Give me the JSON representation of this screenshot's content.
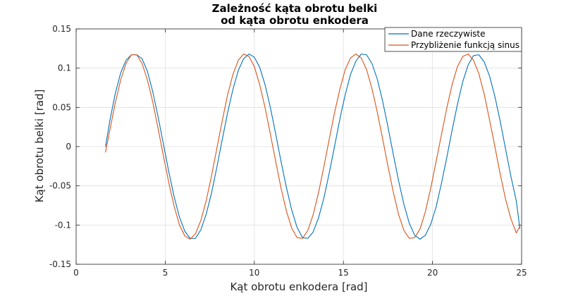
{
  "chart_data": {
    "type": "line",
    "title": [
      "Zależność kąta obrotu belki",
      "od kąta obrotu enkodera"
    ],
    "xlabel": "Kąt obrotu enkodera [rad]",
    "ylabel": "Kąt obrotu belki [rad]",
    "xlim": [
      0,
      25
    ],
    "ylim": [
      -0.15,
      0.15
    ],
    "xticks": [
      0,
      5,
      10,
      15,
      20,
      25
    ],
    "xtick_labels": [
      "0",
      "5",
      "10",
      "15",
      "20",
      "25"
    ],
    "yticks": [
      -0.15,
      -0.1,
      -0.05,
      0,
      0.05,
      0.1,
      0.15
    ],
    "ytick_labels": [
      "-0.15",
      "-0.1",
      "-0.05",
      "0",
      "0.05",
      "0.1",
      "0.15"
    ],
    "grid": true,
    "legend_position": "top-right",
    "series": [
      {
        "name": "Dane rzeczywiste",
        "color": "#0072BD",
        "x": [
          1.65,
          1.9,
          2.2,
          2.5,
          2.8,
          3.1,
          3.4,
          3.7,
          4.0,
          4.3,
          4.6,
          4.9,
          5.2,
          5.5,
          5.8,
          6.1,
          6.4,
          6.7,
          7.0,
          7.3,
          7.6,
          7.9,
          8.2,
          8.5,
          8.8,
          9.1,
          9.4,
          9.7,
          10.0,
          10.3,
          10.6,
          10.9,
          11.2,
          11.5,
          11.8,
          12.1,
          12.4,
          12.7,
          13.0,
          13.3,
          13.6,
          13.9,
          14.2,
          14.5,
          14.8,
          15.1,
          15.4,
          15.7,
          16.0,
          16.3,
          16.6,
          16.9,
          17.2,
          17.5,
          17.8,
          18.1,
          18.4,
          18.7,
          19.0,
          19.3,
          19.6,
          19.9,
          20.2,
          20.5,
          20.8,
          21.1,
          21.4,
          21.7,
          22.0,
          22.3,
          22.6,
          22.9,
          23.2,
          23.5,
          23.8,
          24.1,
          24.4,
          24.7,
          24.9
        ],
        "y": [
          0.0,
          0.034,
          0.068,
          0.094,
          0.11,
          0.117,
          0.117,
          0.112,
          0.096,
          0.07,
          0.038,
          0.003,
          -0.032,
          -0.064,
          -0.09,
          -0.108,
          -0.117,
          -0.117,
          -0.106,
          -0.086,
          -0.059,
          -0.026,
          0.009,
          0.043,
          0.073,
          0.097,
          0.112,
          0.118,
          0.114,
          0.101,
          0.079,
          0.05,
          0.016,
          -0.019,
          -0.052,
          -0.081,
          -0.103,
          -0.116,
          -0.117,
          -0.109,
          -0.091,
          -0.066,
          -0.034,
          0.0,
          0.035,
          0.066,
          0.092,
          0.109,
          0.118,
          0.117,
          0.106,
          0.086,
          0.058,
          0.025,
          -0.01,
          -0.044,
          -0.074,
          -0.098,
          -0.113,
          -0.118,
          -0.113,
          -0.099,
          -0.077,
          -0.047,
          -0.014,
          0.021,
          0.054,
          0.083,
          0.104,
          0.116,
          0.117,
          0.108,
          0.09,
          0.064,
          0.032,
          -0.003,
          -0.038,
          -0.069,
          -0.104
        ]
      },
      {
        "name": "Przybliżenie funkcją sinus",
        "color": "#D95319",
        "x": [
          1.65,
          1.9,
          2.2,
          2.5,
          2.8,
          3.1,
          3.4,
          3.7,
          4.0,
          4.3,
          4.6,
          4.9,
          5.2,
          5.5,
          5.8,
          6.1,
          6.4,
          6.7,
          7.0,
          7.3,
          7.6,
          7.9,
          8.2,
          8.5,
          8.8,
          9.1,
          9.4,
          9.7,
          10.0,
          10.3,
          10.6,
          10.9,
          11.2,
          11.5,
          11.8,
          12.1,
          12.4,
          12.7,
          13.0,
          13.3,
          13.6,
          13.9,
          14.2,
          14.5,
          14.8,
          15.1,
          15.4,
          15.7,
          16.0,
          16.3,
          16.6,
          16.9,
          17.2,
          17.5,
          17.8,
          18.1,
          18.4,
          18.7,
          19.0,
          19.3,
          19.6,
          19.9,
          20.2,
          20.5,
          20.8,
          21.1,
          21.4,
          21.7,
          22.0,
          22.3,
          22.6,
          22.9,
          23.2,
          23.5,
          23.8,
          24.1,
          24.4,
          24.7,
          24.9
        ],
        "y": [
          -0.007,
          0.022,
          0.056,
          0.085,
          0.106,
          0.117,
          0.117,
          0.106,
          0.085,
          0.057,
          0.023,
          -0.012,
          -0.046,
          -0.076,
          -0.1,
          -0.114,
          -0.118,
          -0.111,
          -0.094,
          -0.069,
          -0.037,
          -0.002,
          0.033,
          0.066,
          0.092,
          0.11,
          0.118,
          0.115,
          0.102,
          0.079,
          0.05,
          0.016,
          -0.019,
          -0.053,
          -0.082,
          -0.104,
          -0.116,
          -0.117,
          -0.107,
          -0.087,
          -0.059,
          -0.026,
          0.009,
          0.043,
          0.073,
          0.098,
          0.113,
          0.118,
          0.113,
          0.098,
          0.074,
          0.044,
          0.01,
          -0.025,
          -0.058,
          -0.087,
          -0.107,
          -0.117,
          -0.116,
          -0.105,
          -0.083,
          -0.053,
          -0.019,
          0.015,
          0.049,
          0.079,
          0.102,
          0.115,
          0.118,
          0.11,
          0.093,
          0.067,
          0.034,
          0.0,
          -0.035,
          -0.067,
          -0.092,
          -0.11,
          -0.102
        ]
      }
    ]
  }
}
